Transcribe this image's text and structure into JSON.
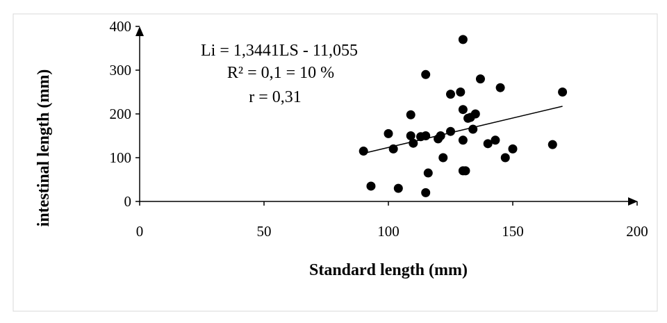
{
  "chart_data": {
    "type": "scatter",
    "xlabel": "Standard length (mm)",
    "ylabel": "intestinal length (mm)",
    "xlim": [
      0,
      200
    ],
    "ylim": [
      0,
      400
    ],
    "xticks": [
      0,
      50,
      100,
      150,
      200
    ],
    "yticks": [
      0,
      100,
      200,
      300,
      400
    ],
    "grid": false,
    "legend": "none",
    "annotations": [
      "Li = 1,3441LS - 11,055",
      "R² = 0,1 = 10 %",
      "r = 0,31"
    ],
    "trendline": {
      "type": "linear",
      "slope": 1.3441,
      "intercept": -11.055,
      "x_range": [
        90,
        170
      ]
    },
    "points": [
      [
        90,
        115
      ],
      [
        93,
        35
      ],
      [
        100,
        155
      ],
      [
        102,
        120
      ],
      [
        104,
        30
      ],
      [
        109,
        198
      ],
      [
        109,
        150
      ],
      [
        110,
        133
      ],
      [
        113,
        148
      ],
      [
        115,
        150
      ],
      [
        115,
        290
      ],
      [
        115,
        20
      ],
      [
        116,
        65
      ],
      [
        120,
        143
      ],
      [
        121,
        150
      ],
      [
        122,
        100
      ],
      [
        125,
        160
      ],
      [
        125,
        245
      ],
      [
        129,
        250
      ],
      [
        130,
        370
      ],
      [
        130,
        210
      ],
      [
        130,
        140
      ],
      [
        130,
        70
      ],
      [
        131,
        70
      ],
      [
        132,
        190
      ],
      [
        133,
        192
      ],
      [
        134,
        165
      ],
      [
        135,
        200
      ],
      [
        137,
        280
      ],
      [
        140,
        132
      ],
      [
        143,
        140
      ],
      [
        145,
        260
      ],
      [
        147,
        100
      ],
      [
        150,
        120
      ],
      [
        166,
        130
      ],
      [
        170,
        250
      ]
    ]
  },
  "colors": {
    "marker": "#000000",
    "axis": "#000000",
    "border": "#d9d9d9"
  }
}
